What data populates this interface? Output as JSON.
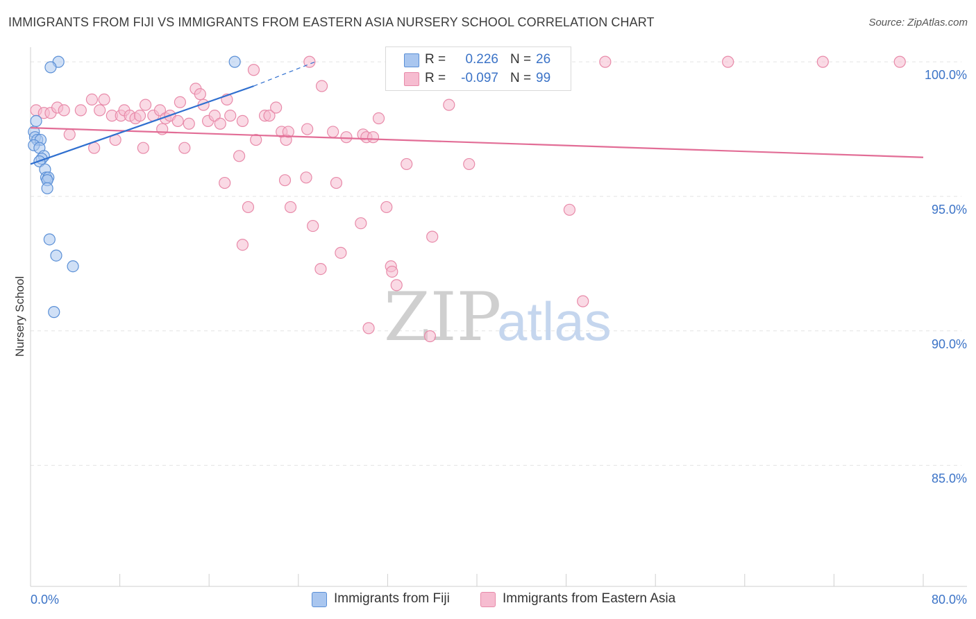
{
  "title": "IMMIGRANTS FROM FIJI VS IMMIGRANTS FROM EASTERN ASIA NURSERY SCHOOL CORRELATION CHART",
  "source": "Source: ZipAtlas.com",
  "watermark": {
    "zip": "ZIP",
    "atlas": "atlas"
  },
  "legend": {
    "rows": [
      {
        "r_label": "R =",
        "r_value": "0.226",
        "n_label": "N =",
        "n_value": "26"
      },
      {
        "r_label": "R =",
        "r_value": "-0.097",
        "n_label": "N =",
        "n_value": "99"
      }
    ]
  },
  "bottom_legend": {
    "fiji": "Immigrants from Fiji",
    "eastern_asia": "Immigrants from Eastern Asia"
  },
  "colors": {
    "fiji_fill": "#a9c6ef",
    "fiji_stroke": "#5a8fd6",
    "fiji_line": "#2f6fcf",
    "asia_fill": "#f6bcd0",
    "asia_stroke": "#e88aa9",
    "asia_line": "#e26d96",
    "tick_text": "#3b73c7",
    "grid": "#e3e3e3"
  },
  "chart_data": {
    "type": "scatter",
    "title": "IMMIGRANTS FROM FIJI VS IMMIGRANTS FROM EASTERN ASIA NURSERY SCHOOL CORRELATION CHART",
    "xlabel": "",
    "ylabel": "Nursery School",
    "xlim": [
      0,
      80
    ],
    "ylim": [
      80.5,
      100.7
    ],
    "x_tick_labels": [
      "0.0%",
      "80.0%"
    ],
    "y_ticks": [
      100,
      95,
      90,
      85
    ],
    "y_tick_labels": [
      "100.0%",
      "95.0%",
      "90.0%",
      "85.0%"
    ],
    "grid": true,
    "series": [
      {
        "name": "Immigrants from Fiji",
        "points": [
          [
            2.5,
            100.0
          ],
          [
            1.8,
            99.8
          ],
          [
            18.3,
            100.0
          ],
          [
            0.5,
            97.8
          ],
          [
            0.3,
            97.4
          ],
          [
            0.4,
            97.2
          ],
          [
            0.6,
            97.1
          ],
          [
            0.9,
            97.1
          ],
          [
            0.3,
            96.9
          ],
          [
            0.8,
            96.8
          ],
          [
            1.2,
            96.5
          ],
          [
            1.0,
            96.4
          ],
          [
            0.8,
            96.3
          ],
          [
            1.3,
            96.0
          ],
          [
            1.4,
            95.7
          ],
          [
            1.6,
            95.7
          ],
          [
            1.5,
            95.6
          ],
          [
            1.5,
            95.3
          ],
          [
            1.7,
            93.4
          ],
          [
            2.3,
            92.8
          ],
          [
            3.8,
            92.4
          ],
          [
            2.1,
            90.7
          ]
        ],
        "trend": {
          "x0": 0,
          "y0": 96.2,
          "x1": 20.0,
          "y1": 99.1,
          "dash_to_x": 25.5,
          "dash_to_y": 100.0
        }
      },
      {
        "name": "Immigrants from Eastern Asia",
        "points": [
          [
            0.5,
            98.2
          ],
          [
            1.2,
            98.1
          ],
          [
            1.8,
            98.1
          ],
          [
            2.4,
            98.3
          ],
          [
            3.0,
            98.2
          ],
          [
            4.5,
            98.2
          ],
          [
            5.5,
            98.6
          ],
          [
            6.2,
            98.2
          ],
          [
            6.6,
            98.6
          ],
          [
            7.3,
            98.0
          ],
          [
            8.1,
            98.0
          ],
          [
            8.4,
            98.2
          ],
          [
            8.9,
            98.0
          ],
          [
            9.4,
            97.9
          ],
          [
            9.8,
            98.0
          ],
          [
            10.3,
            98.4
          ],
          [
            11.0,
            98.0
          ],
          [
            11.6,
            98.2
          ],
          [
            12.1,
            97.9
          ],
          [
            12.5,
            98.0
          ],
          [
            13.2,
            97.8
          ],
          [
            13.4,
            98.5
          ],
          [
            14.2,
            97.7
          ],
          [
            14.8,
            99.0
          ],
          [
            15.2,
            98.8
          ],
          [
            15.5,
            98.4
          ],
          [
            15.9,
            97.8
          ],
          [
            16.5,
            98.0
          ],
          [
            17.0,
            97.7
          ],
          [
            17.6,
            98.6
          ],
          [
            17.9,
            98.0
          ],
          [
            19.0,
            97.8
          ],
          [
            20.2,
            97.1
          ],
          [
            21.0,
            98.0
          ],
          [
            21.4,
            98.0
          ],
          [
            22.0,
            98.3
          ],
          [
            22.5,
            97.4
          ],
          [
            22.9,
            97.1
          ],
          [
            23.1,
            97.4
          ],
          [
            24.8,
            97.5
          ],
          [
            26.1,
            99.1
          ],
          [
            27.1,
            97.4
          ],
          [
            28.3,
            97.2
          ],
          [
            29.8,
            97.3
          ],
          [
            30.1,
            97.2
          ],
          [
            30.7,
            97.2
          ],
          [
            31.2,
            97.9
          ],
          [
            33.7,
            96.2
          ],
          [
            37.5,
            98.4
          ],
          [
            39.3,
            96.2
          ],
          [
            3.5,
            97.3
          ],
          [
            5.7,
            96.8
          ],
          [
            7.6,
            97.1
          ],
          [
            10.1,
            96.8
          ],
          [
            11.8,
            97.5
          ],
          [
            13.8,
            96.8
          ],
          [
            18.7,
            96.5
          ],
          [
            17.4,
            95.5
          ],
          [
            22.8,
            95.6
          ],
          [
            24.7,
            95.7
          ],
          [
            27.4,
            95.5
          ],
          [
            19.5,
            94.6
          ],
          [
            23.3,
            94.6
          ],
          [
            25.3,
            93.9
          ],
          [
            29.6,
            94.0
          ],
          [
            31.9,
            94.6
          ],
          [
            36.0,
            93.5
          ],
          [
            48.3,
            94.5
          ],
          [
            19.0,
            93.2
          ],
          [
            27.8,
            92.9
          ],
          [
            26.0,
            92.3
          ],
          [
            32.3,
            92.4
          ],
          [
            32.4,
            92.2
          ],
          [
            32.8,
            91.7
          ],
          [
            30.3,
            90.1
          ],
          [
            35.8,
            89.8
          ],
          [
            49.5,
            91.1
          ],
          [
            20.0,
            99.7
          ],
          [
            25.0,
            100.0
          ],
          [
            37.0,
            100.0
          ],
          [
            42.5,
            100.0
          ],
          [
            51.5,
            100.0
          ],
          [
            62.5,
            100.0
          ],
          [
            71.0,
            100.0
          ],
          [
            77.9,
            100.0
          ]
        ],
        "trend": {
          "x0": 0,
          "y0": 97.55,
          "x1": 80,
          "y1": 96.45
        }
      }
    ]
  }
}
